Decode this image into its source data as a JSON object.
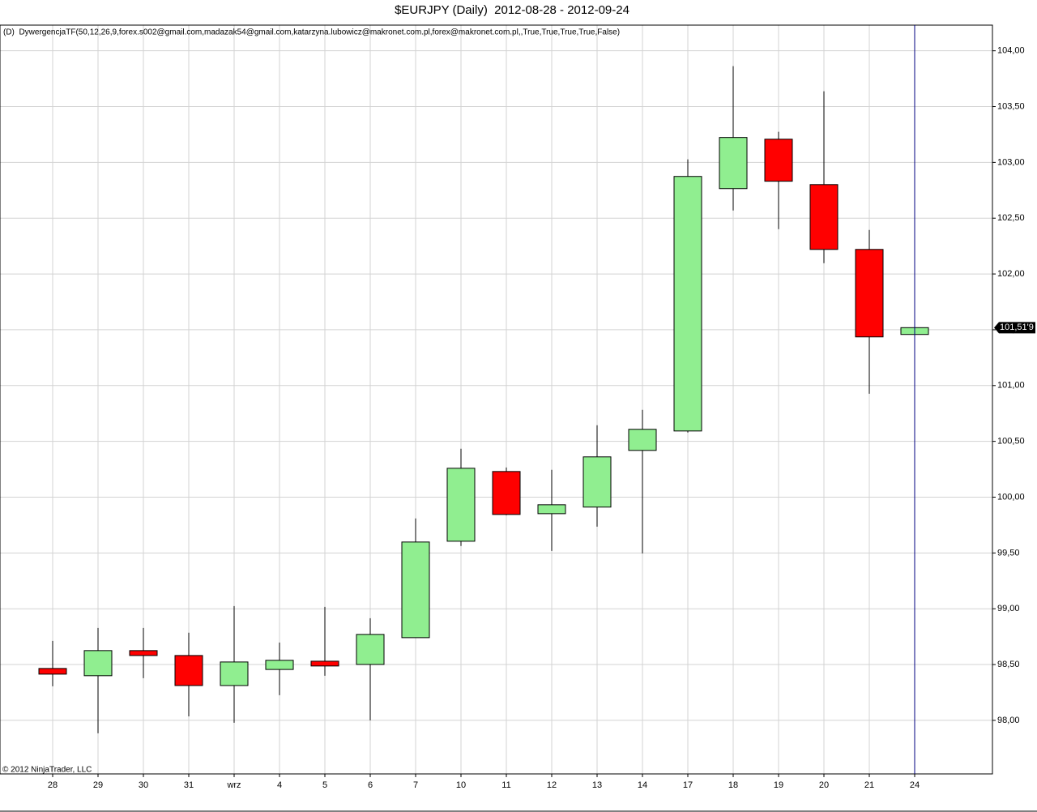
{
  "chart_data": {
    "type": "candlestick",
    "title": "$EURJPY (Daily)  2012-08-28 - 2012-09-24",
    "indicator": "(D)  DywergencjaTF(50,12,26,9,forex.s002@gmail.com,madazak54@gmail.com,katarzyna.lubowicz@makronet.com.pl,forex@makronet.com.pl,,True,True,True,True,False)",
    "copyright": "© 2012 NinjaTrader, LLC",
    "categories": [
      "28",
      "29",
      "30",
      "31",
      "wrz",
      "4",
      "5",
      "6",
      "7",
      "10",
      "11",
      "12",
      "13",
      "14",
      "17",
      "18",
      "19",
      "20",
      "21",
      "24"
    ],
    "open": [
      98.465,
      98.4,
      98.625,
      98.581,
      98.312,
      98.456,
      98.53,
      98.501,
      98.741,
      99.605,
      100.23,
      99.852,
      99.911,
      100.419,
      100.593,
      102.765,
      103.208,
      102.801,
      102.22,
      101.458
    ],
    "high": [
      98.712,
      98.828,
      98.828,
      98.785,
      99.024,
      98.697,
      99.017,
      98.915,
      99.809,
      100.434,
      100.266,
      100.245,
      100.644,
      100.782,
      103.027,
      103.862,
      103.274,
      103.637,
      102.395,
      101.52
    ],
    "low": [
      98.305,
      97.884,
      98.378,
      98.036,
      97.978,
      98.225,
      98.4,
      98.0,
      98.741,
      99.562,
      99.838,
      99.518,
      99.736,
      99.496,
      100.579,
      102.569,
      102.402,
      102.097,
      100.927,
      101.458
    ],
    "close": [
      98.414,
      98.625,
      98.581,
      98.312,
      98.523,
      98.538,
      98.487,
      98.77,
      99.598,
      100.259,
      99.845,
      99.932,
      100.361,
      100.608,
      102.874,
      103.223,
      102.831,
      102.22,
      101.436,
      101.519
    ],
    "up_color": "#90ee90",
    "down_color": "#ff0000",
    "ylim": [
      97.52,
      104.23
    ],
    "yticks": [
      {
        "value": 98,
        "label": "98,00"
      },
      {
        "value": 98.5,
        "label": "98,50"
      },
      {
        "value": 99,
        "label": "99,00"
      },
      {
        "value": 99.5,
        "label": "99,50"
      },
      {
        "value": 100,
        "label": "100,00"
      },
      {
        "value": 100.5,
        "label": "100,50"
      },
      {
        "value": 101,
        "label": "101,00"
      },
      {
        "value": 101.5,
        "label": "101,50"
      },
      {
        "value": 102,
        "label": "102,00"
      },
      {
        "value": 102.5,
        "label": "102,50"
      },
      {
        "value": 103,
        "label": "103,00"
      },
      {
        "value": 103.5,
        "label": "103,50"
      },
      {
        "value": 104,
        "label": "104,00"
      }
    ],
    "last_price": {
      "value": 101.519,
      "label": "101,51'9"
    },
    "grid": true
  }
}
